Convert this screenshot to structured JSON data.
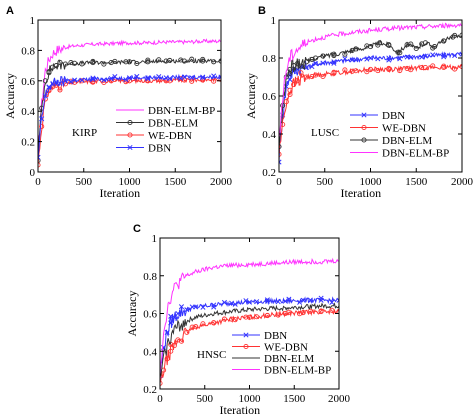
{
  "chart_data": [
    {
      "panel_label": "A",
      "type": "line",
      "cancer": "KIRP",
      "xlabel": "Iteration",
      "ylabel": "Accuracy",
      "xlim": [
        0,
        2000
      ],
      "ylim": [
        0,
        1
      ],
      "xticks": [
        "0",
        "500",
        "1000",
        "1500",
        "2000"
      ],
      "yticks": [
        "0",
        "0.2",
        "0.4",
        "0.6",
        "0.8",
        "1"
      ],
      "legend_position": "center-right",
      "series": [
        {
          "name": "DBN-ELM-BP",
          "color": "#ff33ff",
          "marker": "none",
          "x": [
            0,
            40,
            80,
            120,
            160,
            200,
            300,
            400,
            600,
            800,
            1000,
            1200,
            1400,
            1600,
            1800,
            2000
          ],
          "y": [
            0.12,
            0.45,
            0.67,
            0.74,
            0.78,
            0.8,
            0.82,
            0.83,
            0.84,
            0.845,
            0.85,
            0.85,
            0.855,
            0.855,
            0.86,
            0.86
          ]
        },
        {
          "name": "DBN-ELM",
          "color": "#333333",
          "marker": "circle",
          "x": [
            0,
            40,
            80,
            120,
            160,
            200,
            300,
            400,
            600,
            800,
            1000,
            1200,
            1400,
            1600,
            1800,
            2000
          ],
          "y": [
            0.1,
            0.42,
            0.6,
            0.66,
            0.69,
            0.7,
            0.71,
            0.715,
            0.72,
            0.72,
            0.725,
            0.725,
            0.73,
            0.73,
            0.73,
            0.73
          ]
        },
        {
          "name": "WE-DBN",
          "color": "#ff3333",
          "marker": "circle",
          "x": [
            0,
            40,
            80,
            120,
            160,
            200,
            300,
            400,
            600,
            800,
            1000,
            1200,
            1400,
            1600,
            1800,
            2000
          ],
          "y": [
            0.05,
            0.3,
            0.48,
            0.54,
            0.56,
            0.57,
            0.58,
            0.59,
            0.595,
            0.6,
            0.6,
            0.6,
            0.6,
            0.605,
            0.605,
            0.61
          ]
        },
        {
          "name": "DBN",
          "color": "#3333ff",
          "marker": "x",
          "x": [
            0,
            40,
            80,
            120,
            160,
            200,
            300,
            400,
            600,
            800,
            1000,
            1200,
            1400,
            1600,
            1800,
            2000
          ],
          "y": [
            0.08,
            0.35,
            0.5,
            0.56,
            0.58,
            0.59,
            0.6,
            0.605,
            0.61,
            0.615,
            0.62,
            0.62,
            0.62,
            0.625,
            0.625,
            0.625
          ]
        }
      ]
    },
    {
      "panel_label": "B",
      "type": "line",
      "cancer": "LUSC",
      "xlabel": "Iteration",
      "ylabel": "Accuracy",
      "xlim": [
        0,
        2000
      ],
      "ylim": [
        0.2,
        1
      ],
      "xticks": [
        "0",
        "500",
        "1000",
        "1500",
        "2000"
      ],
      "yticks": [
        "0.2",
        "0.4",
        "0.6",
        "0.8",
        "1"
      ],
      "legend_position": "center-right",
      "series": [
        {
          "name": "DBN",
          "color": "#3333ff",
          "marker": "x",
          "x": [
            0,
            40,
            80,
            120,
            160,
            200,
            300,
            400,
            600,
            800,
            1000,
            1200,
            1400,
            1600,
            1800,
            2000
          ],
          "y": [
            0.28,
            0.5,
            0.65,
            0.71,
            0.73,
            0.74,
            0.75,
            0.77,
            0.78,
            0.79,
            0.8,
            0.8,
            0.805,
            0.81,
            0.815,
            0.82
          ]
        },
        {
          "name": "WE-DBN",
          "color": "#ff3333",
          "marker": "circle",
          "x": [
            0,
            40,
            80,
            120,
            160,
            200,
            300,
            400,
            600,
            800,
            1000,
            1200,
            1400,
            1600,
            1800,
            2000
          ],
          "y": [
            0.3,
            0.45,
            0.57,
            0.63,
            0.66,
            0.68,
            0.7,
            0.71,
            0.72,
            0.73,
            0.74,
            0.74,
            0.745,
            0.75,
            0.75,
            0.755
          ]
        },
        {
          "name": "DBN-ELM",
          "color": "#333333",
          "marker": "circle",
          "x": [
            0,
            40,
            80,
            120,
            160,
            200,
            300,
            400,
            600,
            800,
            1000,
            1100,
            1200,
            1300,
            1400,
            1500,
            1600,
            1700,
            1800,
            1900,
            2000
          ],
          "y": [
            0.32,
            0.55,
            0.7,
            0.74,
            0.76,
            0.77,
            0.78,
            0.8,
            0.82,
            0.84,
            0.86,
            0.88,
            0.87,
            0.83,
            0.87,
            0.85,
            0.88,
            0.86,
            0.89,
            0.91,
            0.92
          ]
        },
        {
          "name": "DBN-ELM-BP",
          "color": "#ff33ff",
          "marker": "none",
          "x": [
            0,
            40,
            80,
            120,
            160,
            200,
            300,
            400,
            600,
            800,
            1000,
            1200,
            1400,
            1600,
            1800,
            2000
          ],
          "y": [
            0.35,
            0.6,
            0.74,
            0.8,
            0.83,
            0.85,
            0.88,
            0.9,
            0.92,
            0.935,
            0.945,
            0.955,
            0.96,
            0.965,
            0.97,
            0.975
          ]
        }
      ]
    },
    {
      "panel_label": "C",
      "type": "line",
      "cancer": "HNSC",
      "xlabel": "Iteration",
      "ylabel": "Accuracy",
      "xlim": [
        0,
        2000
      ],
      "ylim": [
        0.2,
        1
      ],
      "xticks": [
        "0",
        "500",
        "1000",
        "1500",
        "2000"
      ],
      "yticks": [
        "0.2",
        "0.4",
        "0.6",
        "0.8",
        "1"
      ],
      "legend_position": "bottom-right",
      "series": [
        {
          "name": "DBN",
          "color": "#3333ff",
          "marker": "x",
          "x": [
            0,
            40,
            80,
            120,
            160,
            200,
            300,
            400,
            600,
            800,
            1000,
            1200,
            1400,
            1600,
            1800,
            2000
          ],
          "y": [
            0.28,
            0.42,
            0.5,
            0.55,
            0.58,
            0.6,
            0.62,
            0.635,
            0.645,
            0.655,
            0.66,
            0.665,
            0.665,
            0.67,
            0.67,
            0.67
          ]
        },
        {
          "name": "WE-DBN",
          "color": "#ff3333",
          "marker": "circle",
          "x": [
            0,
            40,
            80,
            120,
            160,
            200,
            300,
            400,
            600,
            800,
            1000,
            1200,
            1400,
            1600,
            1800,
            2000
          ],
          "y": [
            0.22,
            0.3,
            0.36,
            0.4,
            0.43,
            0.46,
            0.5,
            0.53,
            0.55,
            0.57,
            0.58,
            0.59,
            0.6,
            0.605,
            0.61,
            0.61
          ]
        },
        {
          "name": "DBN-ELM",
          "color": "#333333",
          "marker": "none",
          "x": [
            0,
            40,
            80,
            120,
            160,
            200,
            300,
            400,
            600,
            800,
            1000,
            1200,
            1400,
            1600,
            1800,
            2000
          ],
          "y": [
            0.25,
            0.36,
            0.43,
            0.48,
            0.51,
            0.53,
            0.56,
            0.58,
            0.6,
            0.61,
            0.62,
            0.625,
            0.63,
            0.635,
            0.64,
            0.64
          ]
        },
        {
          "name": "DBN-ELM-BP",
          "color": "#ff33ff",
          "marker": "none",
          "x": [
            0,
            40,
            80,
            120,
            160,
            200,
            300,
            400,
            600,
            800,
            1000,
            1200,
            1400,
            1600,
            1800,
            2000
          ],
          "y": [
            0.3,
            0.5,
            0.62,
            0.69,
            0.73,
            0.76,
            0.8,
            0.82,
            0.845,
            0.855,
            0.86,
            0.865,
            0.87,
            0.875,
            0.875,
            0.88
          ]
        }
      ]
    }
  ]
}
